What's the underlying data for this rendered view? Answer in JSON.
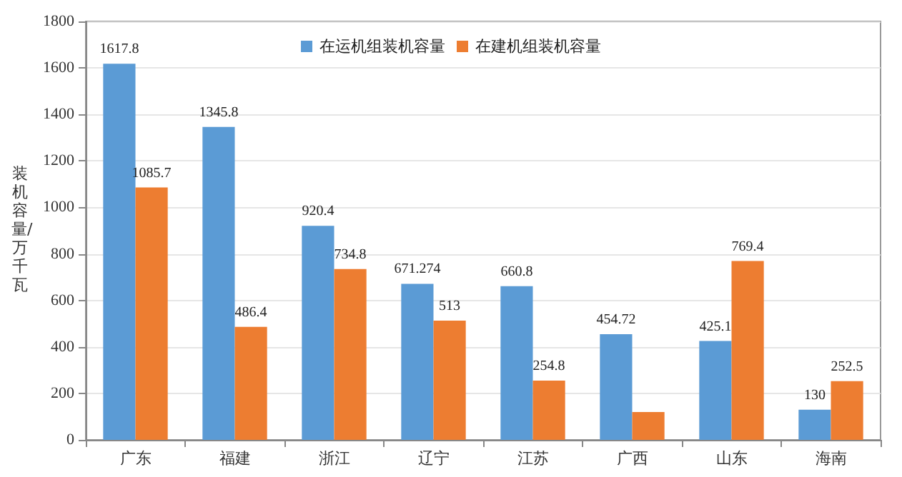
{
  "chart_data": {
    "type": "bar",
    "ylabel": "装机容量/万千瓦",
    "categories": [
      "广东",
      "福建",
      "浙江",
      "辽宁",
      "江苏",
      "广西",
      "山东",
      "海南"
    ],
    "series": [
      {
        "name": "在运机组装机容量",
        "color": "#5b9bd5",
        "values": [
          1617.8,
          1345.8,
          920.4,
          671.274,
          660.8,
          454.72,
          425.1,
          130
        ],
        "value_labels": [
          "1617.8",
          "1345.8",
          "920.4",
          "671.274",
          "660.8",
          "454.72",
          "425.1",
          "130"
        ]
      },
      {
        "name": "在建机组装机容量",
        "color": "#ed7d31",
        "values": [
          1085.7,
          486.4,
          734.8,
          513,
          254.8,
          120,
          769.4,
          252.5
        ],
        "value_labels": [
          "1085.7",
          "486.4",
          "734.8",
          "513",
          "254.8",
          null,
          "769.4",
          "252.5"
        ]
      }
    ],
    "ylim": [
      0,
      1800
    ],
    "yticks": [
      0,
      200,
      400,
      600,
      800,
      1000,
      1200,
      1400,
      1600,
      1800
    ],
    "grid": "y",
    "legend": "top"
  }
}
